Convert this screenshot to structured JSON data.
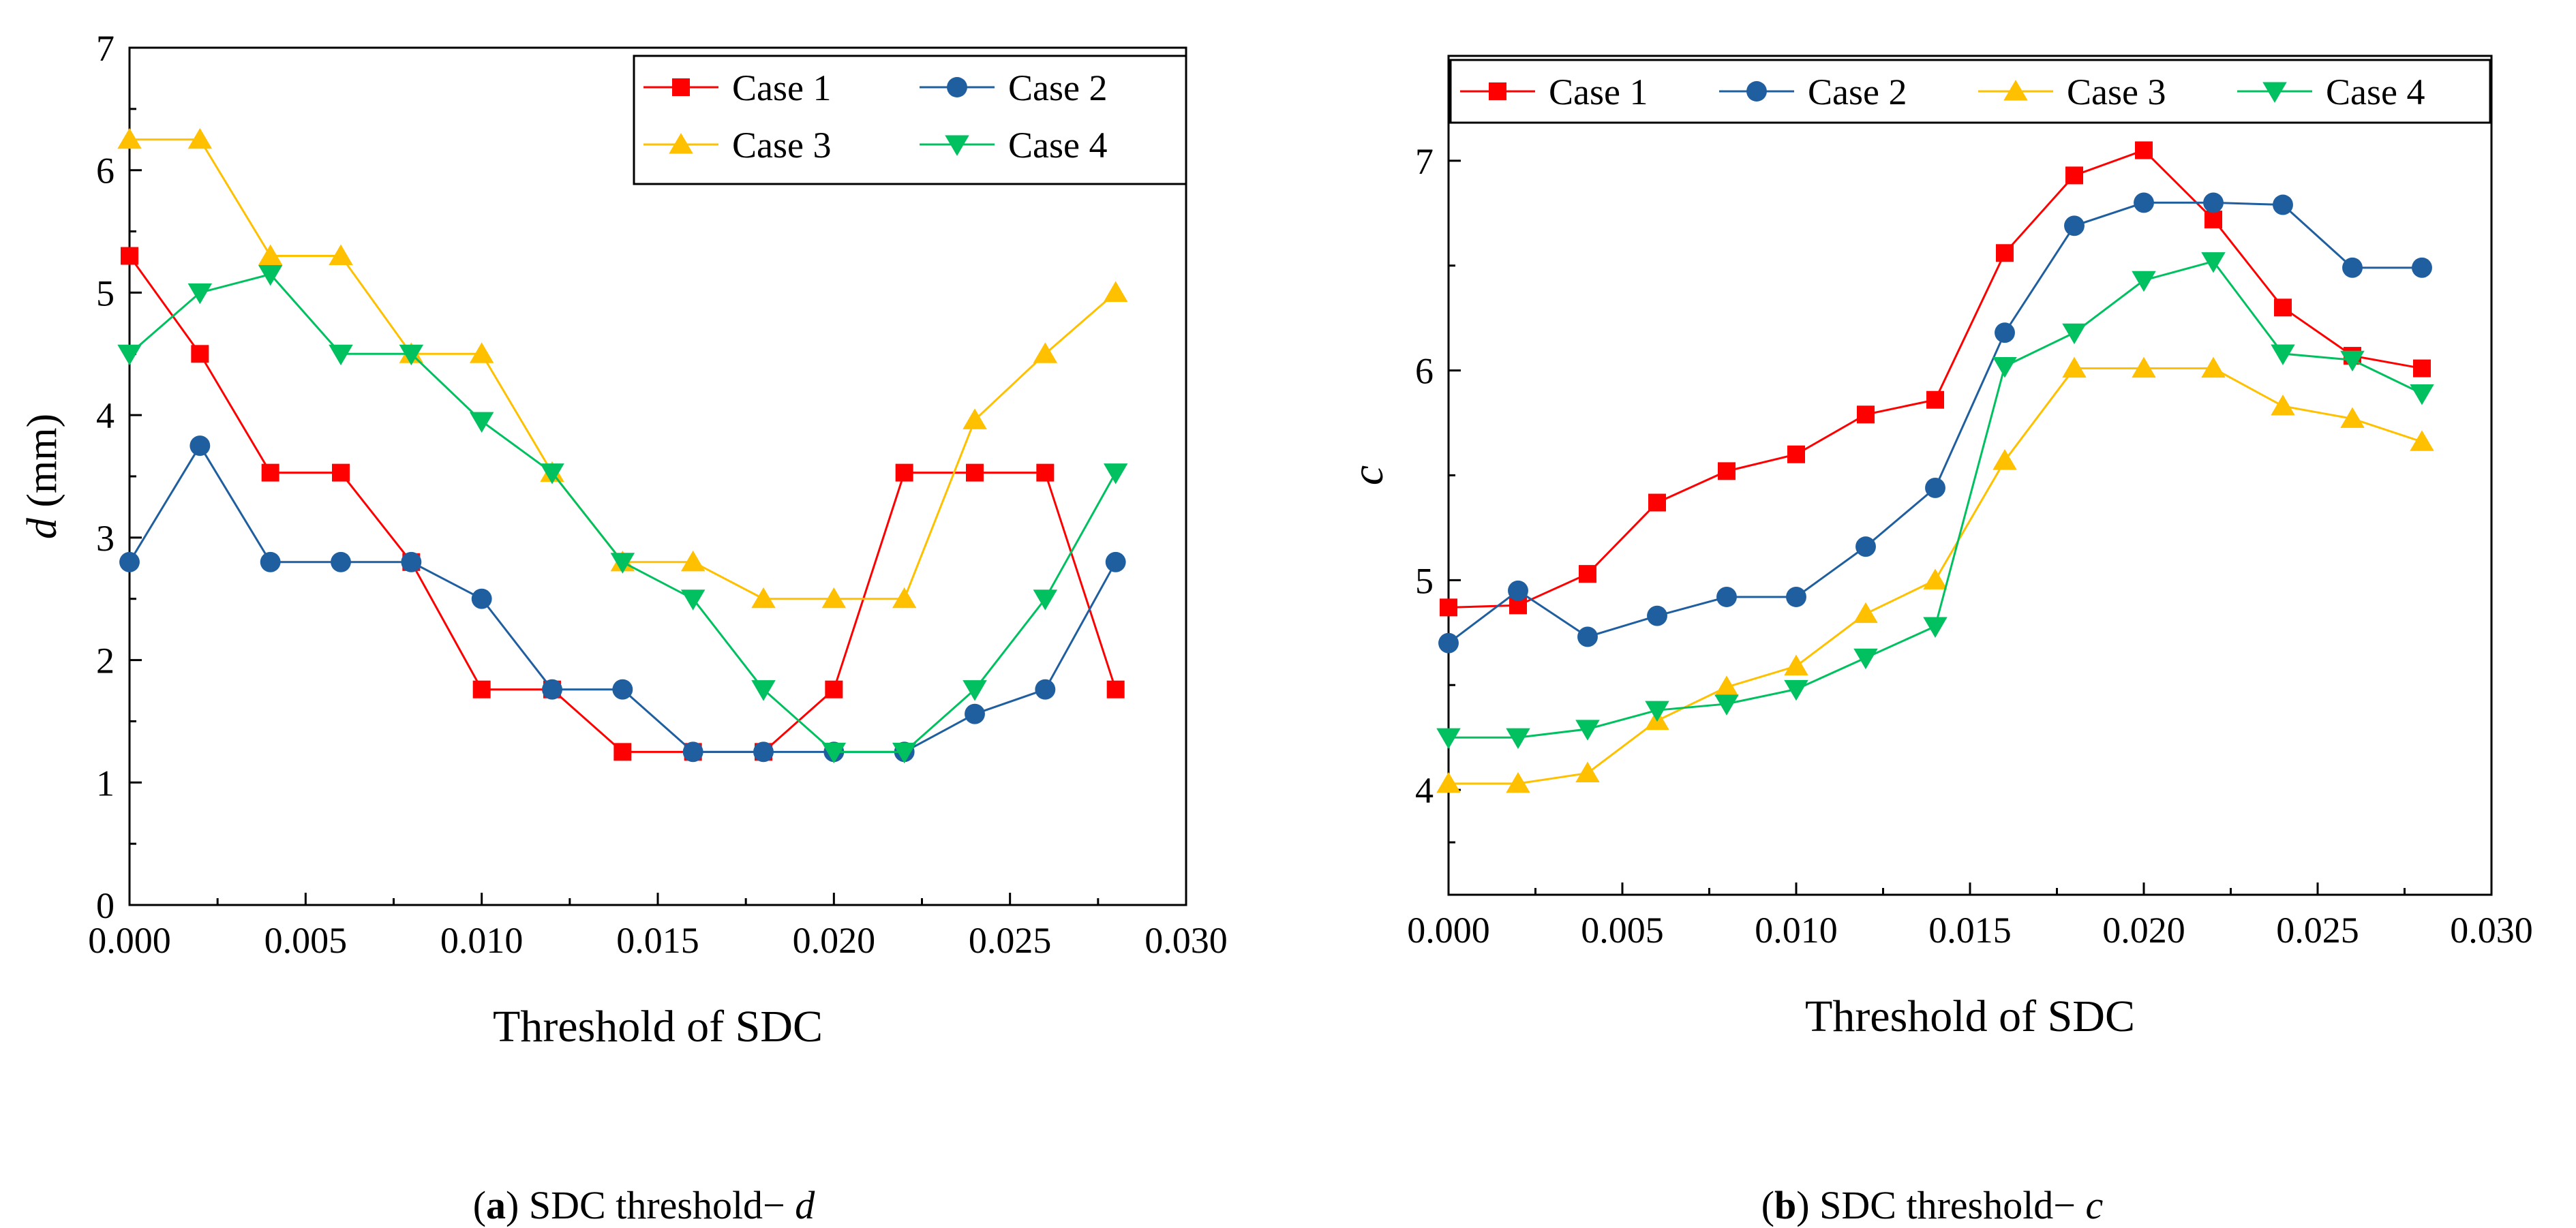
{
  "chart_data": [
    {
      "id": "a",
      "type": "line",
      "caption": {
        "label": "a",
        "text": "SDC threshold−",
        "symbol": "d"
      },
      "xlabel": "Threshold of SDC",
      "ylabel": {
        "symbol": "d",
        "unit": " (mm)"
      },
      "xlim": [
        0,
        0.03
      ],
      "ylim": [
        0,
        7
      ],
      "xticks": [
        "0.000",
        "0.005",
        "0.010",
        "0.015",
        "0.020",
        "0.025",
        "0.030"
      ],
      "xtick_values": [
        0,
        0.005,
        0.01,
        0.015,
        0.02,
        0.025,
        0.03
      ],
      "yticks": [
        "0",
        "1",
        "2",
        "3",
        "4",
        "5",
        "6",
        "7"
      ],
      "ytick_values": [
        0,
        1,
        2,
        3,
        4,
        5,
        6,
        7
      ],
      "legend": {
        "placement": "top-right",
        "columns": 2
      },
      "x": [
        0,
        0.002,
        0.004,
        0.006,
        0.008,
        0.01,
        0.012,
        0.014,
        0.016,
        0.018,
        0.02,
        0.022,
        0.024,
        0.026,
        0.028
      ],
      "series": [
        {
          "name": "Case 1",
          "color": "#ff0000",
          "marker": "square",
          "values": [
            5.3,
            4.5,
            3.53,
            3.53,
            2.8,
            1.76,
            1.76,
            1.25,
            1.25,
            1.25,
            1.76,
            3.53,
            3.53,
            3.53,
            1.76
          ]
        },
        {
          "name": "Case 2",
          "color": "#1f5f9f",
          "marker": "circle",
          "values": [
            2.8,
            3.75,
            2.8,
            2.8,
            2.8,
            2.5,
            1.76,
            1.76,
            1.25,
            1.25,
            1.25,
            1.25,
            1.56,
            1.76,
            2.8
          ]
        },
        {
          "name": "Case 3",
          "color": "#ffc000",
          "marker": "triangle-up",
          "values": [
            6.25,
            6.25,
            5.3,
            5.3,
            4.5,
            4.5,
            3.53,
            2.8,
            2.8,
            2.5,
            2.5,
            2.5,
            3.96,
            4.5,
            5.0
          ]
        },
        {
          "name": "Case 4",
          "color": "#00c060",
          "marker": "triangle-down",
          "values": [
            4.5,
            5.0,
            5.15,
            4.5,
            4.5,
            3.95,
            3.53,
            2.8,
            2.5,
            1.76,
            1.25,
            1.25,
            1.76,
            2.5,
            3.53
          ]
        }
      ]
    },
    {
      "id": "b",
      "type": "line",
      "caption": {
        "label": "b",
        "text": "SDC threshold−",
        "symbol": "c"
      },
      "xlabel": "Threshold of SDC",
      "ylabel": {
        "symbol": "c",
        "unit": ""
      },
      "xlim": [
        0,
        0.03
      ],
      "ylim": [
        3.5,
        7.5
      ],
      "xticks": [
        "0.000",
        "0.005",
        "0.010",
        "0.015",
        "0.020",
        "0.025",
        "0.030"
      ],
      "xtick_values": [
        0,
        0.005,
        0.01,
        0.015,
        0.02,
        0.025,
        0.03
      ],
      "yticks": [
        "4",
        "5",
        "6",
        "7"
      ],
      "ytick_values": [
        4,
        5,
        6,
        7
      ],
      "legend": {
        "placement": "top",
        "columns": 4
      },
      "x": [
        0,
        0.002,
        0.004,
        0.006,
        0.008,
        0.01,
        0.012,
        0.014,
        0.016,
        0.018,
        0.02,
        0.022,
        0.024,
        0.026,
        0.028
      ],
      "series": [
        {
          "name": "Case 1",
          "color": "#ff0000",
          "marker": "square",
          "values": [
            4.87,
            4.88,
            5.03,
            5.37,
            5.52,
            5.6,
            5.79,
            5.86,
            6.56,
            6.93,
            7.05,
            6.72,
            6.3,
            6.07,
            6.01
          ]
        },
        {
          "name": "Case 2",
          "color": "#1f5f9f",
          "marker": "circle",
          "values": [
            4.7,
            4.95,
            4.73,
            4.83,
            4.92,
            4.92,
            5.16,
            5.44,
            6.18,
            6.69,
            6.8,
            6.8,
            6.79,
            6.49,
            6.49
          ]
        },
        {
          "name": "Case 3",
          "color": "#ffc000",
          "marker": "triangle-up",
          "values": [
            4.03,
            4.03,
            4.08,
            4.33,
            4.49,
            4.59,
            4.84,
            5.0,
            5.57,
            6.01,
            6.01,
            6.01,
            5.83,
            5.77,
            5.66
          ]
        },
        {
          "name": "Case 4",
          "color": "#00c060",
          "marker": "triangle-down",
          "values": [
            4.25,
            4.25,
            4.29,
            4.38,
            4.41,
            4.48,
            4.63,
            4.78,
            6.02,
            6.18,
            6.43,
            6.52,
            6.08,
            6.05,
            5.89
          ]
        }
      ]
    }
  ]
}
